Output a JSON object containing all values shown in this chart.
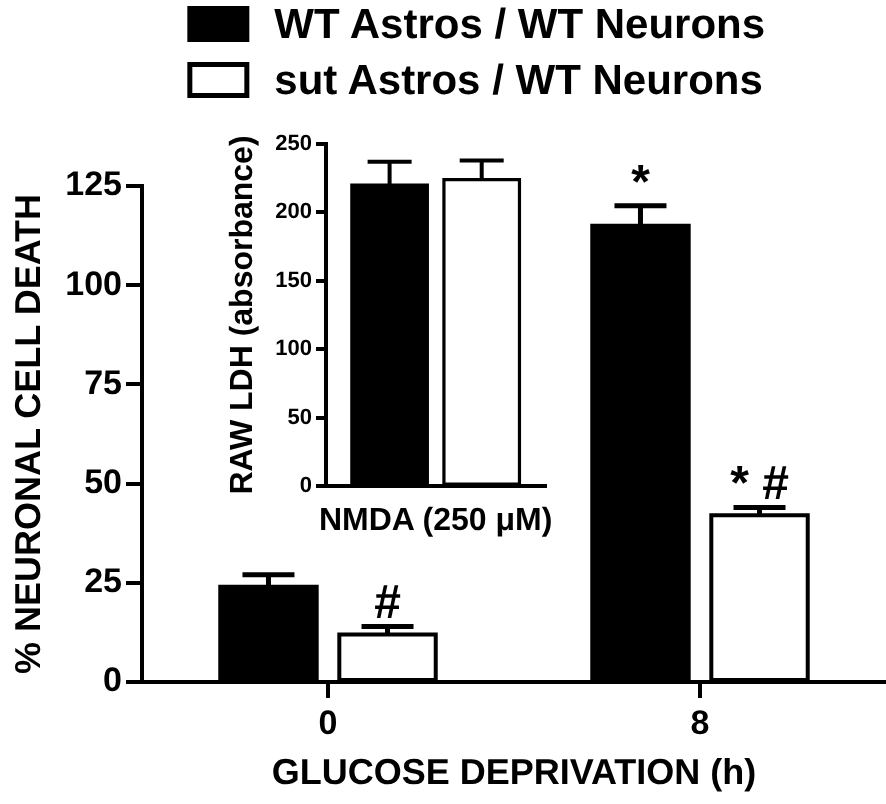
{
  "chart_data": [
    {
      "type": "bar",
      "xlabel": "GLUCOSE DEPRIVATION (h)",
      "ylabel": "% NEURONAL CELL DEATH",
      "categories": [
        "0",
        "8"
      ],
      "series": [
        {
          "name": "WT Astros / WT Neurons",
          "color": "#000000",
          "values": [
            24,
            115
          ],
          "errors": [
            [
              24,
              27
            ],
            [
              115,
              120
            ]
          ]
        },
        {
          "name": "sut Astros / WT Neurons",
          "color": "#ffffff",
          "values": [
            12,
            42
          ],
          "errors": [
            [
              12,
              14
            ],
            [
              42,
              44
            ]
          ]
        }
      ],
      "ylim": [
        0,
        125
      ],
      "yticks": [
        0,
        25,
        50,
        75,
        100,
        125
      ],
      "legend": "top",
      "annotations": [
        "*",
        "#",
        "* #"
      ]
    },
    {
      "type": "bar",
      "ylabel": "RAW LDH (absorbance)",
      "categories": [
        "NMDA (250 μM)"
      ],
      "series": [
        {
          "color": "#000000",
          "values": [
            220
          ],
          "errors": [
            [
              220,
              237
            ]
          ]
        },
        {
          "color": "#ffffff",
          "values": [
            224
          ],
          "errors": [
            [
              224,
              238
            ]
          ]
        }
      ],
      "ylim": [
        0,
        250
      ],
      "yticks": [
        0,
        50,
        100,
        150,
        200,
        250
      ]
    }
  ]
}
